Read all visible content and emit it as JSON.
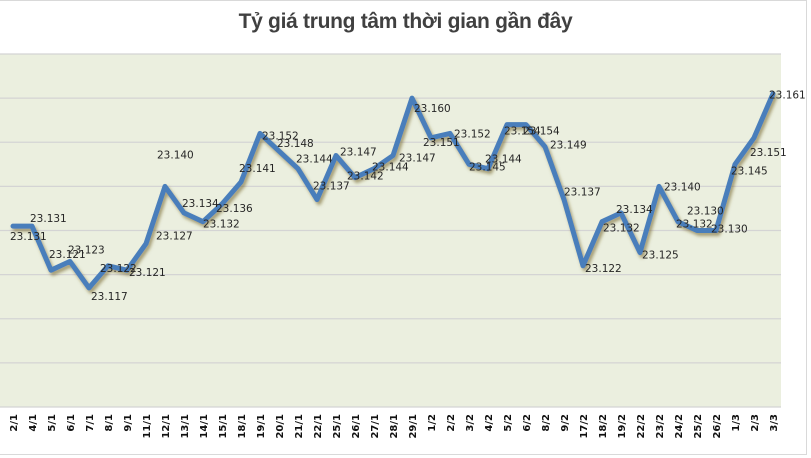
{
  "chart": {
    "title": "Tỷ giá trung tâm thời gian gần đây"
  },
  "colors": {
    "line": "#4a7ebb",
    "plot_bg": "#ebefdf",
    "grid": "#d4d4d4",
    "shadow": "#8a7a3a"
  },
  "chart_data": {
    "type": "line",
    "title": "Tỷ giá trung tâm thời gian gần đây",
    "xlabel": "",
    "ylabel": "",
    "ylim": [
      23.09,
      23.17
    ],
    "grid": true,
    "legend": "none",
    "categories": [
      "2/1",
      "4/1",
      "5/1",
      "6/1",
      "7/1",
      "8/1",
      "9/1",
      "11/1",
      "12/1",
      "13/1",
      "14/1",
      "15/1",
      "18/1",
      "19/1",
      "20/1",
      "21/1",
      "22/1",
      "25/1",
      "26/1",
      "27/1",
      "28/1",
      "29/1",
      "1/2",
      "2/2",
      "3/2",
      "4/2",
      "5/2",
      "6/2",
      "8/2",
      "9/2",
      "17/2",
      "18/2",
      "19/2",
      "22/2",
      "23/2",
      "24/2",
      "25/2",
      "26/2",
      "1/3",
      "2/3",
      "3/3"
    ],
    "series": [
      {
        "name": "Tỷ giá trung tâm",
        "values": [
          23.131,
          23.131,
          23.121,
          23.123,
          23.117,
          23.122,
          23.121,
          23.127,
          23.14,
          23.134,
          23.132,
          23.136,
          23.141,
          23.152,
          23.148,
          23.144,
          23.137,
          23.147,
          23.142,
          23.144,
          23.147,
          23.16,
          23.151,
          23.152,
          23.145,
          23.144,
          23.154,
          23.154,
          23.149,
          23.137,
          23.122,
          23.132,
          23.134,
          23.125,
          23.14,
          23.132,
          23.13,
          23.13,
          23.145,
          23.151,
          23.161
        ],
        "labels": [
          "23.131",
          "23.131",
          "23.121",
          "23.123",
          "23.117",
          "23.122",
          "23.121",
          "23.127",
          "23.140",
          "23.134",
          "23.132",
          "23.136",
          "23.141",
          "23.152",
          "23.148",
          "23.144",
          "23.137",
          "23.147",
          "23.142",
          "23.144",
          "23.147",
          "23.160",
          "23.151",
          "23.152",
          "23.145",
          "23.144",
          "23.154",
          "23.154",
          "23.149",
          "23.137",
          "23.122",
          "23.132",
          "23.134",
          "23.125",
          "23.140",
          "23.132",
          "23.130",
          "23.130",
          "23.145",
          "23.151",
          "23.161"
        ]
      }
    ]
  }
}
